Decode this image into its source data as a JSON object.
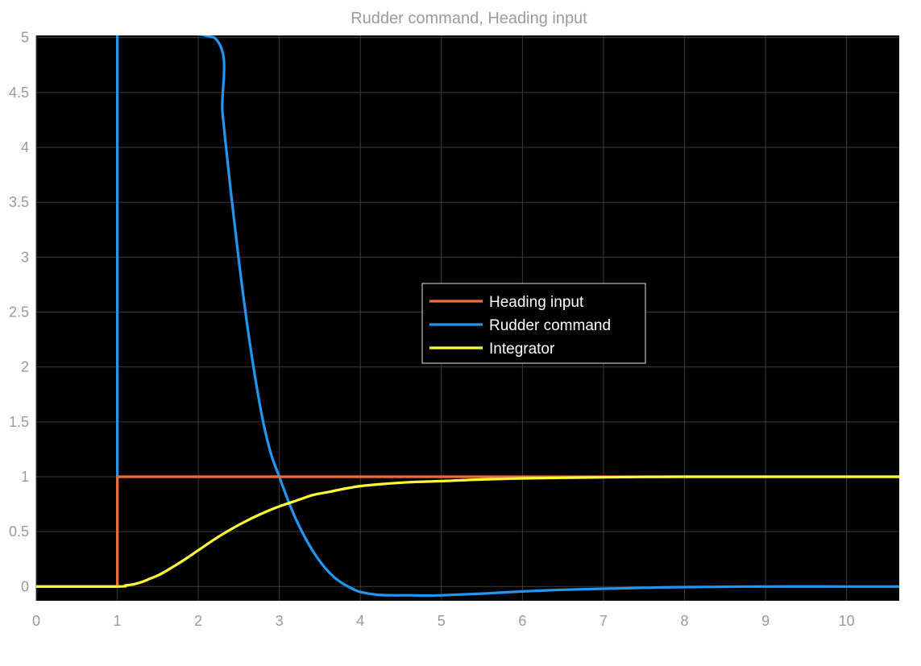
{
  "chart_data": {
    "type": "line",
    "title": "Rudder command, Heading input",
    "xlabel": "",
    "ylabel": "",
    "xlim": [
      0,
      10.65
    ],
    "ylim": [
      -0.13,
      5.02
    ],
    "x_ticks": [
      0,
      1,
      2,
      3,
      4,
      5,
      6,
      7,
      8,
      9,
      10
    ],
    "y_ticks": [
      0,
      0.5,
      1,
      1.5,
      2,
      2.5,
      3,
      3.5,
      4,
      4.5,
      5
    ],
    "y_tick_labels": [
      "0",
      "0.5",
      "1",
      "1.5",
      "2",
      "2.5",
      "3",
      "3.5",
      "4",
      "4.5",
      "5"
    ],
    "x_tick_labels": [
      "0",
      "1",
      "2",
      "3",
      "4",
      "5",
      "6",
      "7",
      "8",
      "9",
      "10"
    ],
    "grid": true,
    "plot_background": "#000000",
    "grid_color": "#3c3c3c",
    "legend_position": "center",
    "series": [
      {
        "name": "Heading input",
        "color": "#f26b3a",
        "x": [
          0,
          1,
          1,
          10.65
        ],
        "y": [
          0,
          0,
          1,
          1
        ]
      },
      {
        "name": "Rudder command",
        "color": "#2196f3",
        "x": [
          0,
          1,
          1,
          1.001,
          2.2,
          2.3,
          2.4,
          2.5,
          2.6,
          2.7,
          2.8,
          2.9,
          3.0,
          3.1,
          3.2,
          3.3,
          3.4,
          3.5,
          3.6,
          3.7,
          3.8,
          3.9,
          4.0,
          4.2,
          4.4,
          4.6,
          4.8,
          5.0,
          5.5,
          6.0,
          6.5,
          7.0,
          7.5,
          8.0,
          9.0,
          10.0,
          10.65
        ],
        "y": [
          0,
          0,
          5.2,
          5.2,
          5.0,
          4.3,
          3.6,
          2.97,
          2.4,
          1.91,
          1.5,
          1.2,
          1.0,
          0.8,
          0.62,
          0.47,
          0.34,
          0.23,
          0.14,
          0.07,
          0.02,
          -0.02,
          -0.05,
          -0.075,
          -0.08,
          -0.08,
          -0.082,
          -0.08,
          -0.065,
          -0.045,
          -0.03,
          -0.02,
          -0.012,
          -0.005,
          0.0,
          0.0,
          0.0
        ]
      },
      {
        "name": "Integrator",
        "color": "#ffff33",
        "x": [
          0,
          1,
          1.1,
          1.2,
          1.3,
          1.4,
          1.5,
          1.6,
          1.8,
          2.0,
          2.2,
          2.4,
          2.6,
          2.8,
          3.0,
          3.2,
          3.4,
          3.6,
          3.8,
          4.0,
          4.3,
          4.6,
          5.0,
          5.5,
          6.0,
          6.5,
          7.0,
          7.5,
          8.0,
          9.0,
          10.0,
          10.65
        ],
        "y": [
          0,
          0,
          0.01,
          0.02,
          0.04,
          0.07,
          0.1,
          0.14,
          0.23,
          0.33,
          0.43,
          0.52,
          0.6,
          0.67,
          0.73,
          0.78,
          0.83,
          0.86,
          0.89,
          0.915,
          0.935,
          0.95,
          0.96,
          0.975,
          0.985,
          0.99,
          0.995,
          0.998,
          1.0,
          1.0,
          1.0,
          1.0
        ]
      }
    ]
  }
}
